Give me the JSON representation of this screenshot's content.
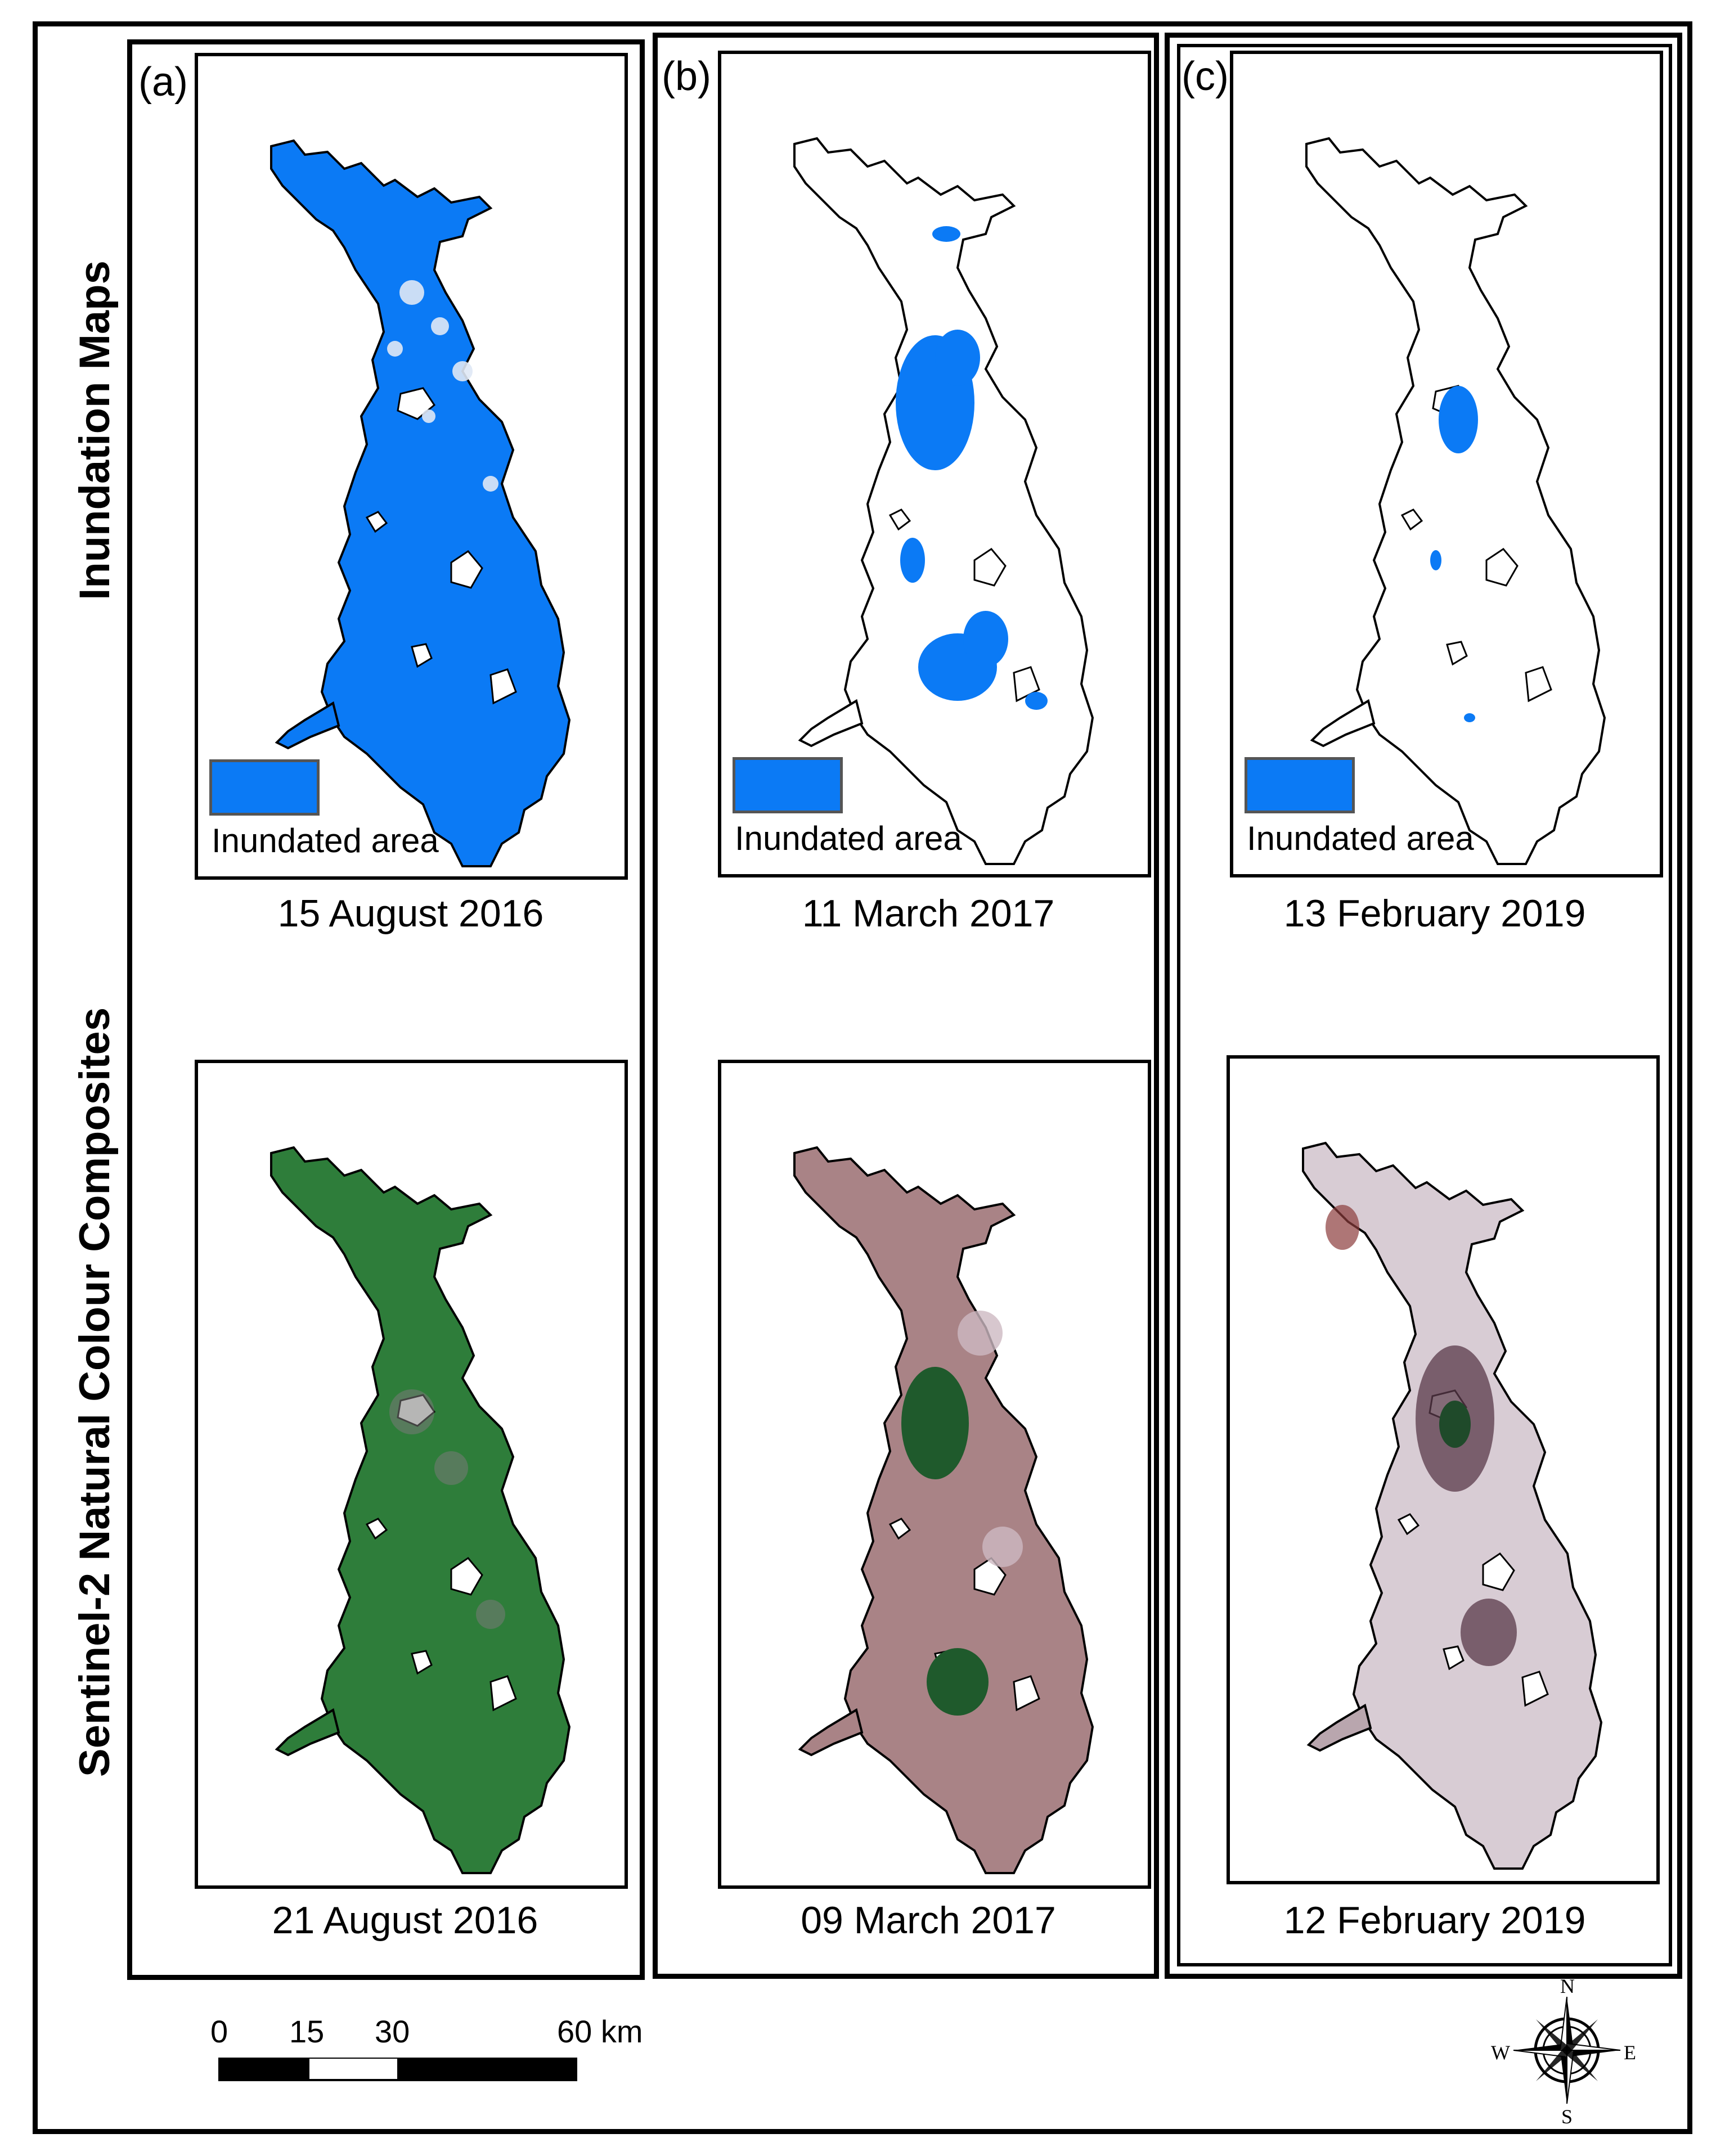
{
  "row_titles": {
    "top": "Inundation Maps",
    "bottom": "Sentinel-2 Natural Colour Composites"
  },
  "panels": [
    {
      "label": "(a)",
      "inundation_date": "15 August 2016",
      "composite_date": "21 August 2016",
      "inundation_level": "high",
      "composite_tone": "green"
    },
    {
      "label": "(b)",
      "inundation_date": "11 March 2017",
      "composite_date": "09 March 2017",
      "inundation_level": "medium",
      "composite_tone": "pinkish-brown"
    },
    {
      "label": "(c)",
      "inundation_date": "13 February 2019",
      "composite_date": "12 February 2019",
      "inundation_level": "low",
      "composite_tone": "pale-grey"
    }
  ],
  "legend": {
    "label": "Inundated area",
    "color": "#0b7af5"
  },
  "scale_bar": {
    "ticks": [
      "0",
      "15",
      "30",
      "60 km"
    ]
  },
  "north_arrow": {
    "n": "N",
    "s": "S",
    "e": "E",
    "w": "W"
  },
  "colors": {
    "water": "#0b7af5",
    "veg_green": "#2e7d3a",
    "pink_brown": "#a98386",
    "pale": "#d8ccd4"
  }
}
